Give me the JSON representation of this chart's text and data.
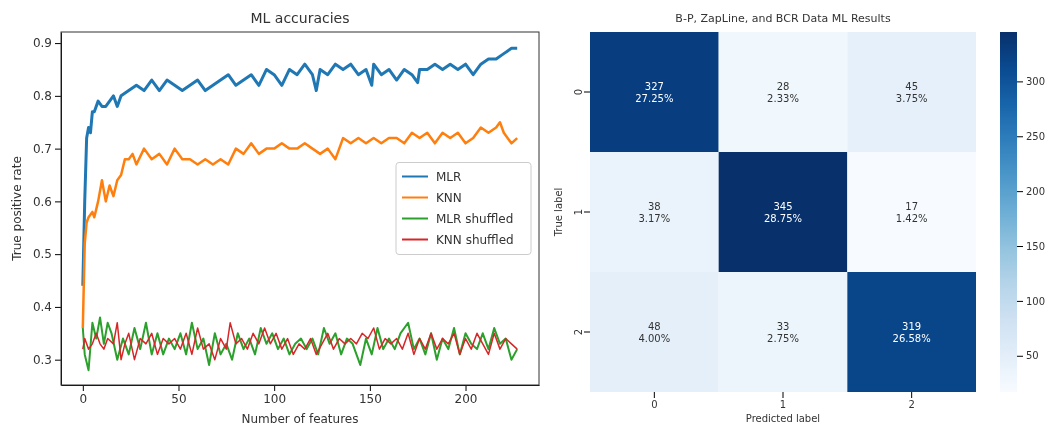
{
  "chart_data": [
    {
      "type": "line",
      "title": "ML accuracies",
      "xlabel": "Number of features",
      "ylabel": "True positive rate",
      "xlim": [
        -11.4,
        238.4
      ],
      "ylim": [
        0.252,
        0.921
      ],
      "xticks": [
        0,
        50,
        100,
        150,
        200
      ],
      "yticks": [
        {
          "value": 0.3,
          "label": "0.3"
        },
        {
          "value": 0.4,
          "label": "0.4"
        },
        {
          "value": 0.5,
          "label": "0.5"
        },
        {
          "value": 0.6,
          "label": "0.6"
        },
        {
          "value": 0.7,
          "label": "0.7"
        },
        {
          "value": 0.8,
          "label": "0.8"
        },
        {
          "value": 0.9,
          "label": "0.9"
        }
      ],
      "legend": "right",
      "grid": false,
      "series": [
        {
          "name": "MLR",
          "color": "#1f77b4",
          "x": [
            0,
            1,
            2,
            3,
            4,
            5,
            6,
            8,
            10,
            12,
            14,
            16,
            18,
            20,
            24,
            28,
            32,
            36,
            40,
            44,
            48,
            52,
            56,
            60,
            64,
            68,
            72,
            76,
            80,
            84,
            88,
            92,
            96,
            100,
            104,
            108,
            112,
            116,
            120,
            122,
            124,
            128,
            132,
            136,
            140,
            144,
            148,
            151,
            152,
            156,
            160,
            164,
            168,
            172,
            175,
            176,
            180,
            184,
            188,
            192,
            196,
            200,
            204,
            208,
            212,
            216,
            220,
            224,
            227
          ],
          "values": [
            0.44,
            0.6,
            0.72,
            0.74,
            0.73,
            0.77,
            0.77,
            0.79,
            0.78,
            0.78,
            0.79,
            0.8,
            0.78,
            0.8,
            0.81,
            0.82,
            0.81,
            0.83,
            0.81,
            0.83,
            0.82,
            0.81,
            0.82,
            0.83,
            0.81,
            0.82,
            0.83,
            0.84,
            0.82,
            0.83,
            0.84,
            0.82,
            0.85,
            0.84,
            0.82,
            0.85,
            0.84,
            0.86,
            0.84,
            0.81,
            0.85,
            0.84,
            0.86,
            0.85,
            0.86,
            0.84,
            0.85,
            0.82,
            0.86,
            0.84,
            0.85,
            0.83,
            0.85,
            0.84,
            0.825,
            0.85,
            0.85,
            0.86,
            0.85,
            0.86,
            0.85,
            0.86,
            0.84,
            0.86,
            0.87,
            0.87,
            0.88,
            0.89,
            0.89
          ]
        },
        {
          "name": "KNN",
          "color": "#ff7f0e",
          "x": [
            0,
            1,
            2,
            3,
            5,
            6,
            8,
            10,
            12,
            14,
            16,
            18,
            20,
            22,
            24,
            26,
            28,
            32,
            36,
            40,
            44,
            48,
            52,
            56,
            60,
            64,
            68,
            72,
            76,
            80,
            84,
            88,
            92,
            96,
            100,
            104,
            108,
            112,
            116,
            120,
            124,
            128,
            132,
            136,
            140,
            144,
            148,
            152,
            156,
            160,
            164,
            168,
            172,
            176,
            180,
            184,
            188,
            192,
            196,
            200,
            204,
            208,
            212,
            216,
            218,
            220,
            224,
            227
          ],
          "values": [
            0.36,
            0.52,
            0.56,
            0.57,
            0.58,
            0.57,
            0.6,
            0.64,
            0.6,
            0.63,
            0.61,
            0.64,
            0.65,
            0.68,
            0.68,
            0.69,
            0.67,
            0.7,
            0.68,
            0.69,
            0.67,
            0.7,
            0.68,
            0.68,
            0.67,
            0.68,
            0.67,
            0.68,
            0.67,
            0.7,
            0.69,
            0.71,
            0.69,
            0.7,
            0.7,
            0.71,
            0.7,
            0.7,
            0.71,
            0.7,
            0.69,
            0.7,
            0.68,
            0.72,
            0.71,
            0.72,
            0.71,
            0.72,
            0.71,
            0.72,
            0.72,
            0.71,
            0.73,
            0.72,
            0.73,
            0.71,
            0.73,
            0.72,
            0.73,
            0.71,
            0.72,
            0.74,
            0.73,
            0.74,
            0.75,
            0.73,
            0.71,
            0.72
          ]
        },
        {
          "name": "MLR shuffled",
          "color": "#2ca02c",
          "x": [
            0,
            1,
            3,
            5,
            7,
            9,
            11,
            13,
            15,
            18,
            21,
            24,
            27,
            30,
            33,
            36,
            39,
            42,
            45,
            48,
            51,
            54,
            57,
            60,
            63,
            66,
            69,
            72,
            75,
            78,
            81,
            84,
            87,
            90,
            93,
            96,
            99,
            102,
            105,
            108,
            111,
            114,
            117,
            120,
            123,
            126,
            129,
            132,
            135,
            138,
            141,
            145,
            148,
            151,
            154,
            157,
            160,
            163,
            166,
            170,
            173,
            176,
            179,
            182,
            185,
            188,
            191,
            194,
            197,
            200,
            203,
            206,
            209,
            212,
            215,
            218,
            221,
            224,
            227
          ],
          "values": [
            0.36,
            0.31,
            0.28,
            0.37,
            0.34,
            0.38,
            0.33,
            0.37,
            0.35,
            0.3,
            0.34,
            0.31,
            0.36,
            0.32,
            0.37,
            0.31,
            0.35,
            0.31,
            0.34,
            0.32,
            0.35,
            0.31,
            0.37,
            0.32,
            0.34,
            0.29,
            0.35,
            0.31,
            0.33,
            0.3,
            0.35,
            0.32,
            0.34,
            0.31,
            0.36,
            0.33,
            0.35,
            0.32,
            0.34,
            0.31,
            0.33,
            0.34,
            0.32,
            0.34,
            0.31,
            0.36,
            0.33,
            0.35,
            0.31,
            0.34,
            0.33,
            0.29,
            0.34,
            0.31,
            0.36,
            0.32,
            0.34,
            0.32,
            0.35,
            0.37,
            0.32,
            0.34,
            0.31,
            0.35,
            0.3,
            0.34,
            0.32,
            0.36,
            0.31,
            0.35,
            0.33,
            0.32,
            0.35,
            0.32,
            0.36,
            0.33,
            0.34,
            0.3,
            0.32
          ]
        },
        {
          "name": "KNN shuffled",
          "color": "#d62728",
          "x": [
            0,
            1,
            3,
            5,
            7,
            9,
            11,
            13,
            16,
            18,
            20,
            22,
            24,
            27,
            30,
            33,
            36,
            39,
            42,
            45,
            48,
            51,
            54,
            57,
            60,
            63,
            66,
            69,
            72,
            75,
            77,
            80,
            83,
            86,
            89,
            92,
            95,
            98,
            101,
            104,
            107,
            110,
            113,
            116,
            119,
            122,
            125,
            128,
            131,
            134,
            137,
            140,
            143,
            146,
            149,
            152,
            155,
            158,
            161,
            164,
            167,
            170,
            173,
            176,
            179,
            182,
            185,
            188,
            191,
            194,
            197,
            200,
            203,
            206,
            209,
            212,
            215,
            218,
            221,
            224,
            227
          ],
          "values": [
            0.32,
            0.34,
            0.32,
            0.33,
            0.35,
            0.33,
            0.32,
            0.34,
            0.33,
            0.37,
            0.3,
            0.33,
            0.35,
            0.3,
            0.34,
            0.33,
            0.35,
            0.31,
            0.34,
            0.33,
            0.34,
            0.32,
            0.35,
            0.31,
            0.36,
            0.32,
            0.33,
            0.3,
            0.34,
            0.32,
            0.37,
            0.33,
            0.34,
            0.32,
            0.35,
            0.33,
            0.36,
            0.33,
            0.35,
            0.32,
            0.34,
            0.31,
            0.33,
            0.32,
            0.34,
            0.31,
            0.33,
            0.35,
            0.32,
            0.34,
            0.33,
            0.34,
            0.33,
            0.35,
            0.34,
            0.36,
            0.32,
            0.34,
            0.33,
            0.34,
            0.32,
            0.35,
            0.31,
            0.34,
            0.32,
            0.35,
            0.32,
            0.34,
            0.33,
            0.35,
            0.31,
            0.34,
            0.32,
            0.35,
            0.33,
            0.31,
            0.35,
            0.32,
            0.34,
            0.33,
            0.32
          ]
        }
      ]
    },
    {
      "type": "heatmap",
      "title": "B-P, ZapLine, and BCR Data ML Results",
      "xlabel": "Predicted label",
      "ylabel": "True label",
      "categories": [
        "0",
        "1",
        "2"
      ],
      "y_categories": [
        "0",
        "1",
        "2"
      ],
      "cells": [
        [
          327,
          28,
          45
        ],
        [
          38,
          345,
          17
        ],
        [
          48,
          33,
          319
        ]
      ],
      "cell_labels": [
        [
          "327\n27.25%",
          "28\n2.33%",
          "45\n3.75%"
        ],
        [
          "38\n3.17%",
          "345\n28.75%",
          "17\n1.42%"
        ],
        [
          "48\n4.00%",
          "33\n2.75%",
          "319\n26.58%"
        ]
      ],
      "clim": [
        17,
        345
      ],
      "cticks": [
        50,
        100,
        150,
        200,
        250,
        300
      ]
    }
  ]
}
